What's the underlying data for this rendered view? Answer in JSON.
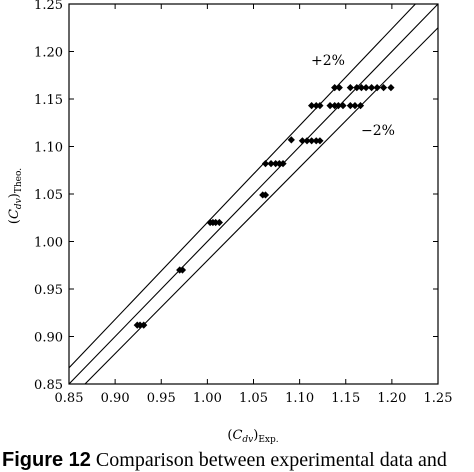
{
  "chart_data": {
    "type": "scatter",
    "xlabel": "(C_{dv})_{Exp.}",
    "ylabel": "(C_{dv})_{Theo.}",
    "xlim": [
      0.85,
      1.25
    ],
    "ylim": [
      0.85,
      1.25
    ],
    "x_ticks": [
      "0.85",
      "0.90",
      "0.95",
      "1.00",
      "1.05",
      "1.10",
      "1.15",
      "1.20",
      "1.25"
    ],
    "y_ticks": [
      "0.85",
      "0.90",
      "0.95",
      "1.00",
      "1.05",
      "1.10",
      "1.15",
      "1.20",
      "1.25"
    ],
    "points": [
      {
        "x": 0.924,
        "y": 0.912
      },
      {
        "x": 0.927,
        "y": 0.912
      },
      {
        "x": 0.931,
        "y": 0.912
      },
      {
        "x": 0.97,
        "y": 0.97
      },
      {
        "x": 0.973,
        "y": 0.97
      },
      {
        "x": 1.003,
        "y": 1.02
      },
      {
        "x": 1.006,
        "y": 1.02
      },
      {
        "x": 1.009,
        "y": 1.02
      },
      {
        "x": 1.013,
        "y": 1.02
      },
      {
        "x": 1.06,
        "y": 1.049
      },
      {
        "x": 1.063,
        "y": 1.049
      },
      {
        "x": 1.063,
        "y": 1.082
      },
      {
        "x": 1.069,
        "y": 1.082
      },
      {
        "x": 1.074,
        "y": 1.082
      },
      {
        "x": 1.078,
        "y": 1.082
      },
      {
        "x": 1.082,
        "y": 1.082
      },
      {
        "x": 1.091,
        "y": 1.107
      },
      {
        "x": 1.103,
        "y": 1.106
      },
      {
        "x": 1.108,
        "y": 1.106
      },
      {
        "x": 1.113,
        "y": 1.106
      },
      {
        "x": 1.118,
        "y": 1.106
      },
      {
        "x": 1.122,
        "y": 1.106
      },
      {
        "x": 1.113,
        "y": 1.143
      },
      {
        "x": 1.118,
        "y": 1.143
      },
      {
        "x": 1.122,
        "y": 1.143
      },
      {
        "x": 1.133,
        "y": 1.143
      },
      {
        "x": 1.138,
        "y": 1.143
      },
      {
        "x": 1.142,
        "y": 1.143
      },
      {
        "x": 1.147,
        "y": 1.143
      },
      {
        "x": 1.155,
        "y": 1.143
      },
      {
        "x": 1.16,
        "y": 1.143
      },
      {
        "x": 1.166,
        "y": 1.143
      },
      {
        "x": 1.138,
        "y": 1.162
      },
      {
        "x": 1.143,
        "y": 1.162
      },
      {
        "x": 1.155,
        "y": 1.162
      },
      {
        "x": 1.162,
        "y": 1.162
      },
      {
        "x": 1.167,
        "y": 1.162
      },
      {
        "x": 1.172,
        "y": 1.162
      },
      {
        "x": 1.178,
        "y": 1.162
      },
      {
        "x": 1.184,
        "y": 1.162
      },
      {
        "x": 1.191,
        "y": 1.162
      },
      {
        "x": 1.199,
        "y": 1.162
      }
    ],
    "reference_lines": [
      {
        "label": "",
        "slope": 1.0
      },
      {
        "label": "+2%",
        "slope": 1.02
      },
      {
        "label": "−2%",
        "slope": 0.98
      }
    ],
    "marker": "diamond",
    "grid": false
  },
  "caption": {
    "label": "Figure 12",
    "text": " Comparison between experimental data and"
  }
}
